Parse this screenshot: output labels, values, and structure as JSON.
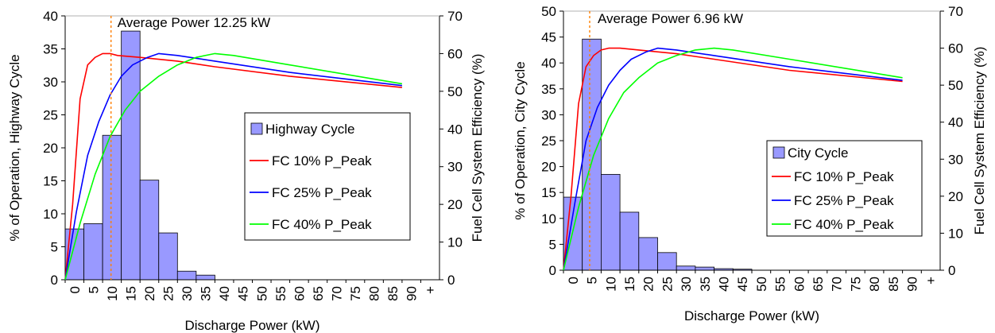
{
  "chart_data": [
    {
      "type": "bar",
      "xlabel": "Discharge Power (kW)",
      "ylabel": "% of Operation, Highway Cycle",
      "y2label": "Fuel Cell System Efficiency (%)",
      "categories": [
        "0",
        "5",
        "10",
        "15",
        "20",
        "25",
        "30",
        "35",
        "40",
        "45",
        "50",
        "55",
        "60",
        "65",
        "70",
        "75",
        "80",
        "85",
        "90",
        "+"
      ],
      "ylim": [
        0,
        40
      ],
      "yticks": [
        0,
        5,
        10,
        15,
        20,
        25,
        30,
        35,
        40
      ],
      "y2lim": [
        0,
        70
      ],
      "y2ticks": [
        0,
        10,
        20,
        30,
        40,
        50,
        60,
        70
      ],
      "series": [
        {
          "name": "Highway Cycle",
          "kind": "bar",
          "color": "#9999ff",
          "values": [
            7.7,
            8.5,
            21.9,
            37.7,
            15.1,
            7.1,
            1.3,
            0.7,
            0,
            0,
            0,
            0,
            0,
            0,
            0,
            0,
            0,
            0,
            0,
            0
          ]
        },
        {
          "name": "FC 10% P_Peak",
          "kind": "line",
          "axis": "right",
          "color": "#ff0000",
          "x": [
            0,
            2,
            4,
            6,
            8,
            10,
            12,
            14,
            20,
            30,
            40,
            60,
            90
          ],
          "y": [
            0,
            20,
            48,
            57,
            59,
            60,
            60,
            59.5,
            59,
            58,
            56.5,
            54,
            51
          ]
        },
        {
          "name": "FC 25% P_Peak",
          "kind": "line",
          "axis": "right",
          "color": "#0000ff",
          "x": [
            0,
            3,
            6,
            9,
            12,
            15,
            18,
            22,
            25,
            30,
            40,
            60,
            90
          ],
          "y": [
            0,
            18,
            33,
            42,
            49,
            54,
            57,
            59,
            60,
            59.5,
            58,
            55,
            51.5
          ]
        },
        {
          "name": "FC 40% P_Peak",
          "kind": "line",
          "axis": "right",
          "color": "#00ff00",
          "x": [
            0,
            4,
            8,
            12,
            16,
            20,
            25,
            30,
            35,
            40,
            45,
            60,
            90
          ],
          "y": [
            0,
            15,
            28,
            38,
            45,
            50,
            54,
            57,
            59,
            60,
            59.5,
            57,
            52
          ]
        }
      ],
      "vline": {
        "x": 12.25,
        "label": "Average Power 12.25 kW",
        "color": "#ff8000"
      },
      "legend": "right"
    },
    {
      "type": "bar",
      "xlabel": "Discharge Power (kW)",
      "ylabel": "% of Operation, City Cycle",
      "y2label": "Fuel Cell System Efficiency (%)",
      "categories": [
        "0",
        "5",
        "10",
        "15",
        "20",
        "25",
        "30",
        "35",
        "40",
        "45",
        "50",
        "55",
        "60",
        "65",
        "70",
        "75",
        "80",
        "85",
        "90",
        "+"
      ],
      "ylim": [
        0,
        50
      ],
      "yticks": [
        0,
        5,
        10,
        15,
        20,
        25,
        30,
        35,
        40,
        45,
        50
      ],
      "y2lim": [
        0,
        70
      ],
      "y2ticks": [
        0,
        10,
        20,
        30,
        40,
        50,
        60,
        70
      ],
      "series": [
        {
          "name": "City Cycle",
          "kind": "bar",
          "color": "#9999ff",
          "values": [
            14.1,
            44.6,
            18.5,
            11.2,
            6.3,
            3.4,
            0.8,
            0.6,
            0.3,
            0.2,
            0,
            0,
            0,
            0,
            0,
            0,
            0,
            0,
            0,
            0
          ]
        },
        {
          "name": "FC 10% P_Peak",
          "kind": "line",
          "axis": "right",
          "color": "#ff0000",
          "x": [
            0,
            2,
            4,
            6,
            8,
            10,
            12,
            15,
            20,
            30,
            40,
            60,
            90
          ],
          "y": [
            0,
            20,
            45,
            55,
            58,
            59.5,
            60,
            60,
            59.5,
            58.5,
            57,
            54,
            51
          ]
        },
        {
          "name": "FC 25% P_Peak",
          "kind": "line",
          "axis": "right",
          "color": "#0000ff",
          "x": [
            0,
            3,
            6,
            9,
            12,
            15,
            18,
            22,
            25,
            30,
            40,
            60,
            90
          ],
          "y": [
            0,
            18,
            35,
            44,
            50,
            54,
            57,
            59,
            60,
            59.5,
            58,
            55,
            51.3
          ]
        },
        {
          "name": "FC 40% P_Peak",
          "kind": "line",
          "axis": "right",
          "color": "#00ff00",
          "x": [
            0,
            4,
            8,
            12,
            16,
            20,
            25,
            30,
            35,
            40,
            45,
            60,
            90
          ],
          "y": [
            0,
            17,
            31,
            41,
            48,
            52,
            56,
            58,
            59.5,
            60,
            59.5,
            57,
            52
          ]
        }
      ],
      "vline": {
        "x": 6.96,
        "label": "Average Power 6.96 kW",
        "color": "#ff8000"
      },
      "legend": "right"
    }
  ]
}
